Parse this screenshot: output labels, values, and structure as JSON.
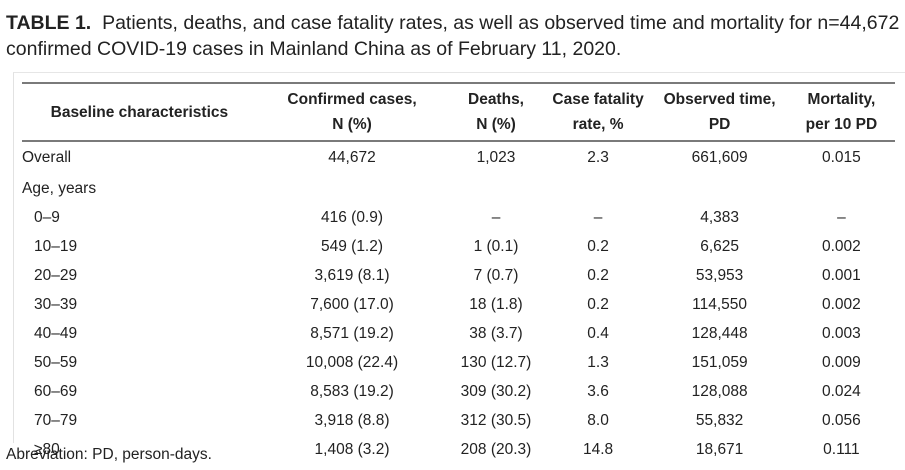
{
  "caption": {
    "label": "TABLE 1.",
    "text": "Patients, deaths, and case fatality rates, as well as observed time and mortality for n=44,672 confirmed COVID-19 cases in Mainland China as of February 11, 2020."
  },
  "table": {
    "headers": [
      {
        "line1": "Baseline characteristics",
        "line2": ""
      },
      {
        "line1": "Confirmed cases,",
        "line2": "N (%)"
      },
      {
        "line1": "Deaths,",
        "line2": "N (%)"
      },
      {
        "line1": "Case fatality",
        "line2": "rate, %"
      },
      {
        "line1": "Observed time,",
        "line2": "PD"
      },
      {
        "line1": "Mortality,",
        "line2": "per 10 PD"
      }
    ],
    "overall": {
      "label": "Overall",
      "cases": "44,672",
      "deaths": "1,023",
      "cfr": "2.3",
      "observed": "661,609",
      "mortality": "0.015"
    },
    "section_label": "Age, years",
    "rows": [
      {
        "label": "0–9",
        "cases": "416 (0.9)",
        "deaths": "–",
        "cfr": "–",
        "observed": "4,383",
        "mortality": "–"
      },
      {
        "label": "10–19",
        "cases": "549 (1.2)",
        "deaths": "1 (0.1)",
        "cfr": "0.2",
        "observed": "6,625",
        "mortality": "0.002"
      },
      {
        "label": "20–29",
        "cases": "3,619 (8.1)",
        "deaths": "7 (0.7)",
        "cfr": "0.2",
        "observed": "53,953",
        "mortality": "0.001"
      },
      {
        "label": "30–39",
        "cases": "7,600 (17.0)",
        "deaths": "18 (1.8)",
        "cfr": "0.2",
        "observed": "114,550",
        "mortality": "0.002"
      },
      {
        "label": "40–49",
        "cases": "8,571 (19.2)",
        "deaths": "38 (3.7)",
        "cfr": "0.4",
        "observed": "128,448",
        "mortality": "0.003"
      },
      {
        "label": "50–59",
        "cases": "10,008 (22.4)",
        "deaths": "130 (12.7)",
        "cfr": "1.3",
        "observed": "151,059",
        "mortality": "0.009"
      },
      {
        "label": "60–69",
        "cases": "8,583 (19.2)",
        "deaths": "309 (30.2)",
        "cfr": "3.6",
        "observed": "128,088",
        "mortality": "0.024"
      },
      {
        "label": "70–79",
        "cases": "3,918 (8.8)",
        "deaths": "312 (30.5)",
        "cfr": "8.0",
        "observed": "55,832",
        "mortality": "0.056"
      },
      {
        "label": "≥80",
        "cases": "1,408 (3.2)",
        "deaths": "208 (20.3)",
        "cfr": "14.8",
        "observed": "18,671",
        "mortality": "0.111"
      }
    ]
  },
  "footnote": "Abreviation: PD, person-days."
}
